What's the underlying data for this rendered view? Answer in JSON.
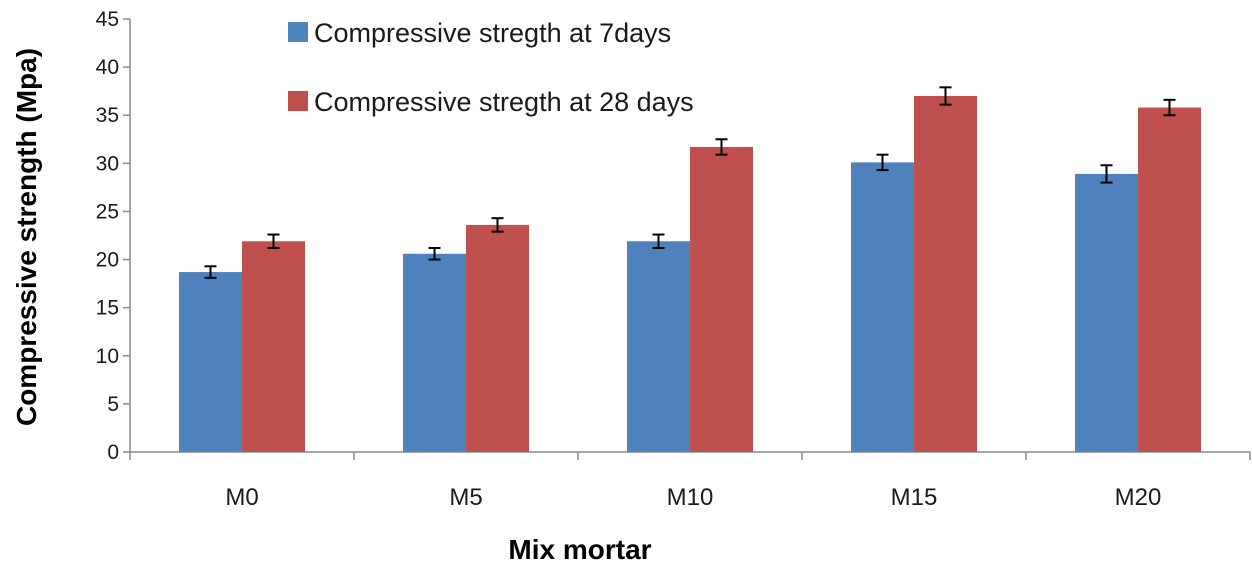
{
  "chart_data": {
    "type": "bar",
    "title": "",
    "xlabel": "Mix mortar",
    "ylabel": "Compressive strength (Mpa)",
    "ylim": [
      0,
      45
    ],
    "yticks": [
      0,
      5,
      10,
      15,
      20,
      25,
      30,
      35,
      40,
      45
    ],
    "ytick_labels": [
      "0",
      "5",
      "10",
      "15",
      "20",
      "25",
      "30",
      "35",
      "40",
      "45"
    ],
    "grid": false,
    "legend_position": "top-center",
    "categories": [
      "M0",
      "M5",
      "M10",
      "M15",
      "M20"
    ],
    "series": [
      {
        "name": "Compressive stregth at 7days",
        "color": "#4F81BD",
        "values": [
          18.7,
          20.6,
          21.9,
          30.1,
          28.9
        ],
        "errors": [
          0.6,
          0.6,
          0.7,
          0.8,
          0.9
        ]
      },
      {
        "name": "Compressive stregth at 28 days",
        "color": "#C0504D",
        "values": [
          21.9,
          23.6,
          31.7,
          37.0,
          35.8
        ],
        "errors": [
          0.7,
          0.7,
          0.8,
          0.9,
          0.8
        ]
      }
    ]
  }
}
